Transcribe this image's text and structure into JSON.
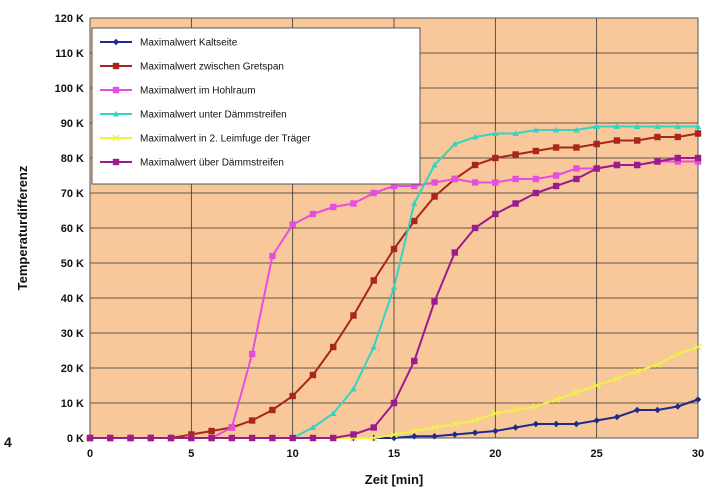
{
  "figure_label": "4",
  "chart_data": {
    "type": "line",
    "xlabel": "Zeit [min]",
    "ylabel": "Temperaturdifferenz",
    "xlim": [
      0,
      30
    ],
    "ylim": [
      0,
      120
    ],
    "x_ticks": [
      "0",
      "5",
      "10",
      "15",
      "20",
      "25",
      "30"
    ],
    "y_ticks": [
      "0 K",
      "10 K",
      "20 K",
      "30 K",
      "40 K",
      "50 K",
      "60 K",
      "70 K",
      "80 K",
      "90 K",
      "100 K",
      "110 K",
      "120 K"
    ],
    "grid": true,
    "legend_position": "top-left",
    "plot_background": "#f8c89a",
    "x": [
      0,
      1,
      2,
      3,
      4,
      5,
      6,
      7,
      8,
      9,
      10,
      11,
      12,
      13,
      14,
      15,
      16,
      17,
      18,
      19,
      20,
      21,
      22,
      23,
      24,
      25,
      26,
      27,
      28,
      29,
      30
    ],
    "series": [
      {
        "name": "Maximalwert Kaltseite",
        "color": "#1f2a8c",
        "marker": "diamond",
        "values": [
          0,
          0,
          0,
          0,
          0,
          0,
          0,
          0,
          0,
          0,
          0,
          0,
          0,
          0,
          0,
          0,
          0.5,
          0.5,
          1,
          1.5,
          2,
          3,
          4,
          4,
          4,
          5,
          6,
          8,
          8,
          9,
          11
        ]
      },
      {
        "name": "Maximalwert zwischen Gretspan",
        "color": "#a8261c",
        "marker": "square",
        "values": [
          0,
          0,
          0,
          0,
          0,
          1,
          2,
          3,
          5,
          8,
          12,
          18,
          26,
          35,
          45,
          54,
          62,
          69,
          74,
          78,
          80,
          81,
          82,
          83,
          83,
          84,
          85,
          85,
          86,
          86,
          87
        ]
      },
      {
        "name": "Maximalwert im Hohlraum",
        "color": "#e64ee0",
        "marker": "square",
        "values": [
          0,
          0,
          0,
          0,
          0,
          0,
          0,
          3,
          24,
          52,
          61,
          64,
          66,
          67,
          70,
          72,
          72,
          73,
          74,
          73,
          73,
          74,
          74,
          75,
          77,
          77,
          78,
          78,
          79,
          79,
          79
        ]
      },
      {
        "name": "Maximalwert unter Dämmstreifen",
        "color": "#33d4c6",
        "marker": "triangle",
        "values": [
          0,
          0,
          0,
          0,
          0,
          0,
          0,
          0,
          0,
          0,
          0,
          3,
          7,
          14,
          26,
          43,
          67,
          78,
          84,
          86,
          87,
          87,
          88,
          88,
          88,
          89,
          89,
          89,
          89,
          89,
          89
        ]
      },
      {
        "name": "Maximalwert in 2. Leimfuge der Träger",
        "color": "#f0f04a",
        "marker": "x",
        "values": [
          0,
          0,
          0,
          0,
          0,
          0,
          0,
          0,
          0,
          0,
          0,
          0,
          0,
          0,
          0,
          1,
          2,
          3,
          4,
          5,
          7,
          8,
          9,
          11,
          13,
          15,
          17,
          19,
          21,
          24,
          26
        ]
      },
      {
        "name": "Maximalwert über Dämmstreifen",
        "color": "#9b1c8c",
        "marker": "square",
        "values": [
          0,
          0,
          0,
          0,
          0,
          0,
          0,
          0,
          0,
          0,
          0,
          0,
          0,
          1,
          3,
          10,
          22,
          39,
          53,
          60,
          64,
          67,
          70,
          72,
          74,
          77,
          78,
          78,
          79,
          80,
          80
        ]
      }
    ]
  }
}
